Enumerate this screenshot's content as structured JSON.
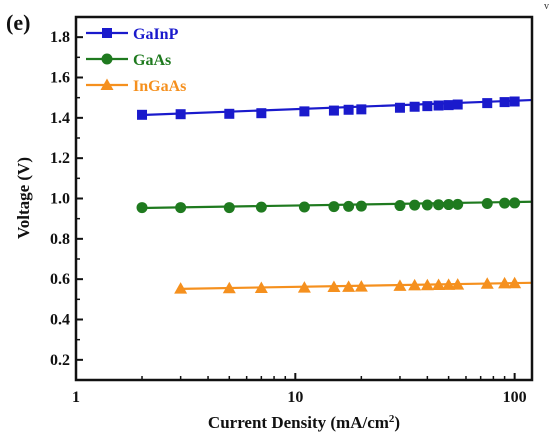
{
  "chart_data": {
    "type": "line",
    "panel_label": "(e)",
    "corner_mark": "v",
    "xlabel": "Current Density (mA/cm",
    "xlabel_sup": "2",
    "xlabel_close": ")",
    "ylabel": "Voltage (V)",
    "xscale": "log",
    "xlim": [
      1,
      120
    ],
    "ylim": [
      0.1,
      1.9
    ],
    "xticks": [
      1,
      10,
      100
    ],
    "xtick_labels": [
      "1",
      "10",
      "100"
    ],
    "yticks": [
      0.2,
      0.4,
      0.6,
      0.8,
      1.0,
      1.2,
      1.4,
      1.6,
      1.8
    ],
    "ytick_labels": [
      "0.2",
      "0.4",
      "0.6",
      "0.8",
      "1.0",
      "1.2",
      "1.4",
      "1.6",
      "1.8"
    ],
    "grid": false,
    "legend_position": "top-left",
    "series": [
      {
        "name": "GaInP",
        "color": "#1a1acc",
        "marker": "square",
        "points": [
          [
            2,
            1.415
          ],
          [
            3,
            1.418
          ],
          [
            5,
            1.42
          ],
          [
            7,
            1.423
          ],
          [
            11,
            1.432
          ],
          [
            15,
            1.436
          ],
          [
            17.5,
            1.44
          ],
          [
            20,
            1.442
          ],
          [
            30,
            1.45
          ],
          [
            35,
            1.455
          ],
          [
            40,
            1.458
          ],
          [
            45,
            1.461
          ],
          [
            50,
            1.463
          ],
          [
            55,
            1.466
          ],
          [
            75,
            1.473
          ],
          [
            90,
            1.478
          ],
          [
            100,
            1.481
          ]
        ],
        "fit": [
          [
            2,
            1.414
          ],
          [
            120,
            1.488
          ]
        ]
      },
      {
        "name": "GaAs",
        "color": "#1f7a1f",
        "marker": "circle",
        "points": [
          [
            2,
            0.955
          ],
          [
            3,
            0.955
          ],
          [
            5,
            0.955
          ],
          [
            7,
            0.957
          ],
          [
            11,
            0.958
          ],
          [
            15,
            0.96
          ],
          [
            17.5,
            0.961
          ],
          [
            20,
            0.962
          ],
          [
            30,
            0.965
          ],
          [
            35,
            0.967
          ],
          [
            40,
            0.968
          ],
          [
            45,
            0.969
          ],
          [
            50,
            0.97
          ],
          [
            55,
            0.971
          ],
          [
            75,
            0.975
          ],
          [
            90,
            0.977
          ],
          [
            100,
            0.978
          ]
        ],
        "fit": [
          [
            2,
            0.953
          ],
          [
            120,
            0.984
          ]
        ]
      },
      {
        "name": "InGaAs",
        "color": "#f5901e",
        "marker": "triangle",
        "points": [
          [
            3,
            0.553
          ],
          [
            5,
            0.555
          ],
          [
            7,
            0.556
          ],
          [
            11,
            0.558
          ],
          [
            15,
            0.561
          ],
          [
            17.5,
            0.562
          ],
          [
            20,
            0.563
          ],
          [
            30,
            0.567
          ],
          [
            35,
            0.569
          ],
          [
            40,
            0.57
          ],
          [
            45,
            0.571
          ],
          [
            50,
            0.572
          ],
          [
            55,
            0.573
          ],
          [
            75,
            0.577
          ],
          [
            90,
            0.579
          ],
          [
            100,
            0.58
          ]
        ],
        "fit": [
          [
            3,
            0.552
          ],
          [
            120,
            0.582
          ]
        ]
      }
    ]
  }
}
